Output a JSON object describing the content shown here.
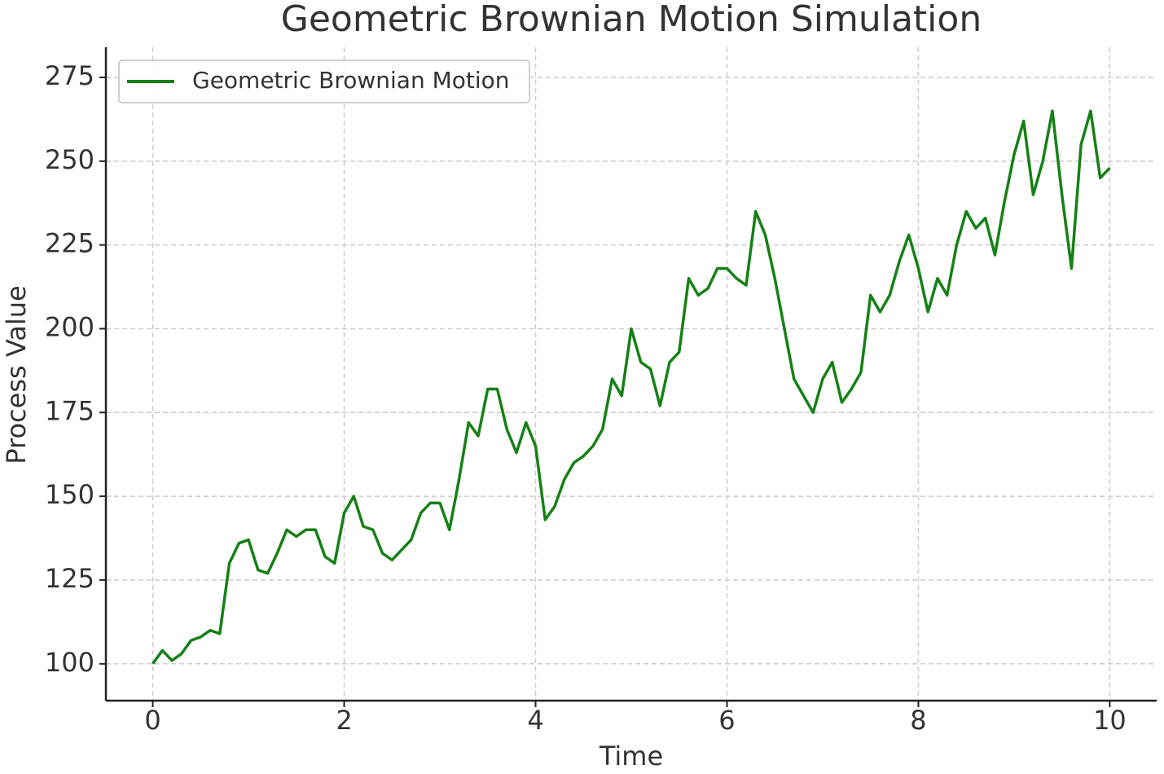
{
  "chart_data": {
    "type": "line",
    "title": "Geometric Brownian Motion Simulation",
    "x_label": "Time",
    "y_label": "Process Value",
    "x": [
      0,
      0.1,
      0.2,
      0.3,
      0.4,
      0.5,
      0.6,
      0.7,
      0.8,
      0.9,
      1,
      1.1,
      1.2,
      1.3,
      1.4,
      1.5,
      1.6,
      1.7,
      1.8,
      1.9,
      2,
      2.1,
      2.2,
      2.3,
      2.4,
      2.5,
      2.6,
      2.7,
      2.8,
      2.9,
      3,
      3.1,
      3.2,
      3.3,
      3.4,
      3.5,
      3.6,
      3.7,
      3.8,
      3.9,
      4,
      4.1,
      4.2,
      4.3,
      4.4,
      4.5,
      4.6,
      4.7,
      4.8,
      4.9,
      5,
      5.1,
      5.2,
      5.3,
      5.4,
      5.5,
      5.6,
      5.7,
      5.8,
      5.9,
      6,
      6.1,
      6.2,
      6.3,
      6.4,
      6.5,
      6.6,
      6.7,
      6.8,
      6.9,
      7,
      7.1,
      7.2,
      7.3,
      7.4,
      7.5,
      7.6,
      7.7,
      7.8,
      7.9,
      8,
      8.1,
      8.2,
      8.3,
      8.4,
      8.5,
      8.6,
      8.7,
      8.8,
      8.9,
      9,
      9.1,
      9.2,
      9.3,
      9.4,
      9.5,
      9.6,
      9.7,
      9.8,
      9.9,
      10
    ],
    "series": [
      {
        "name": "Geometric Brownian Motion",
        "color": "#168016",
        "values": [
          100,
          104,
          101,
          103,
          107,
          108,
          110,
          109,
          130,
          136,
          137,
          128,
          127,
          133,
          140,
          138,
          140,
          140,
          132,
          130,
          145,
          150,
          141,
          140,
          133,
          131,
          134,
          137,
          145,
          148,
          148,
          140,
          155,
          172,
          168,
          182,
          182,
          170,
          163,
          172,
          165,
          143,
          147,
          155,
          160,
          162,
          165,
          170,
          185,
          180,
          200,
          190,
          188,
          177,
          190,
          193,
          215,
          210,
          212,
          218,
          218,
          215,
          213,
          235,
          228,
          215,
          200,
          185,
          180,
          175,
          185,
          190,
          178,
          182,
          187,
          210,
          205,
          210,
          220,
          228,
          218,
          205,
          215,
          210,
          225,
          235,
          230,
          233,
          222,
          238,
          252,
          262,
          240,
          250,
          265,
          240,
          218,
          255,
          265,
          245,
          248
        ]
      }
    ],
    "xlim": [
      -0.49,
      10.49
    ],
    "ylim": [
      89,
      284
    ],
    "xticks": [
      0,
      2,
      4,
      6,
      8,
      10
    ],
    "yticks": [
      100,
      125,
      150,
      175,
      200,
      225,
      250,
      275
    ],
    "grid": true,
    "legend": "upper-left"
  }
}
